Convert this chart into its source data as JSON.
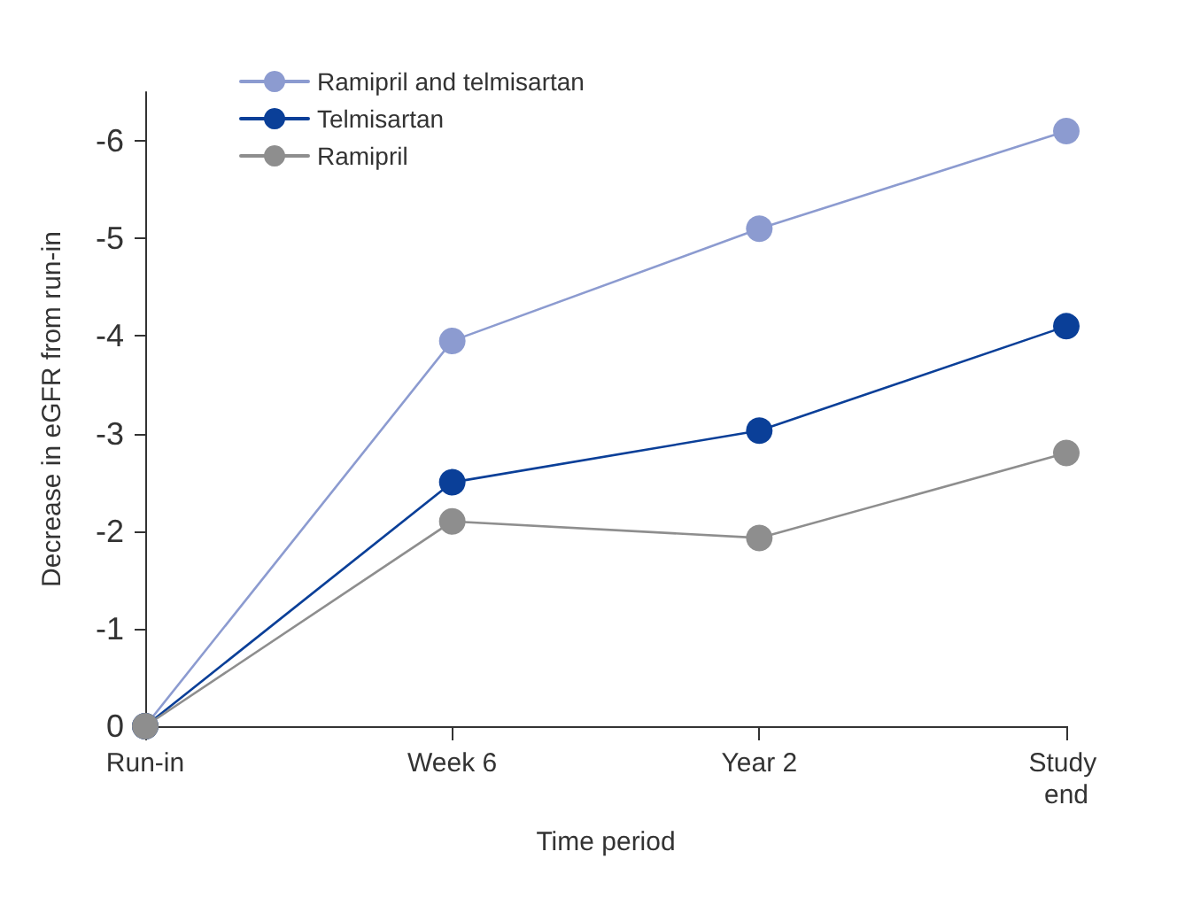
{
  "chart_data": {
    "type": "line",
    "xlabel": "Time period",
    "ylabel": "Decrease in eGFR from run-in",
    "categories": [
      "Run-in",
      "Week 6",
      "Year 2",
      "Study end"
    ],
    "series": [
      {
        "name": "Ramipril and telmisartan",
        "color": "#8c9bd0",
        "values": [
          0,
          -3.95,
          -5.1,
          -6.1
        ]
      },
      {
        "name": "Telmisartan",
        "color": "#0a3f98",
        "values": [
          0,
          -2.5,
          -3.03,
          -4.1
        ]
      },
      {
        "name": "Ramipril",
        "color": "#8e8e8e",
        "values": [
          0,
          -2.1,
          -1.93,
          -2.8
        ]
      }
    ],
    "ylim": [
      0,
      -6.5
    ],
    "yticks": [
      0,
      -1,
      -2,
      -3,
      -4,
      -5,
      -6
    ],
    "grid": false,
    "legend": "top left",
    "marker": "circle",
    "line_style": "solid"
  }
}
